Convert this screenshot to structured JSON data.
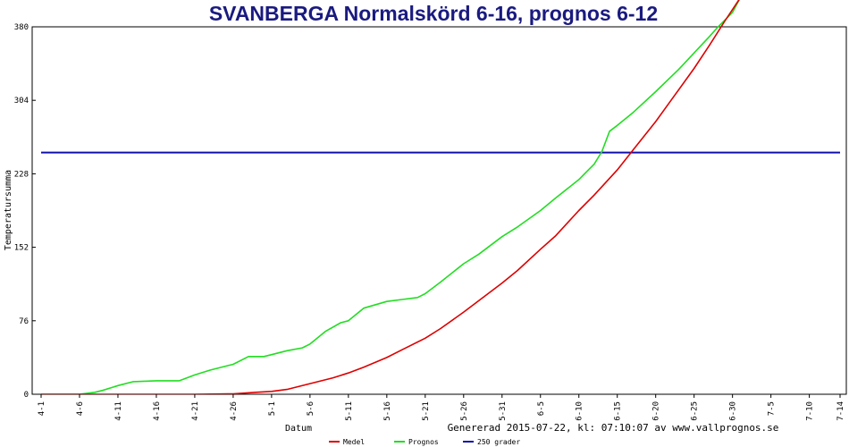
{
  "chart_data": {
    "type": "line",
    "title": "SVANBERGA Normalskörd 6-16, prognos 6-12",
    "xlabel": "Datum",
    "ylabel": "Temperatursumma",
    "ylim": [
      0,
      380
    ],
    "yticks": [
      "0",
      "76",
      "152",
      "228",
      "304",
      "380"
    ],
    "x_range_days": [
      0,
      104
    ],
    "xticks": [
      "4-1",
      "4-6",
      "4-11",
      "4-16",
      "4-21",
      "4-26",
      "5-1",
      "5-6",
      "5-11",
      "5-16",
      "5-21",
      "5-26",
      "5-31",
      "6-5",
      "6-10",
      "6-15",
      "6-20",
      "6-25",
      "6-30",
      "7-5",
      "7-10",
      "7-14"
    ],
    "grid": false,
    "legend_position": "bottom",
    "footer": "Genererad 2015-07-22, kl: 07:10:07 av www.vallprognos.se",
    "series": [
      {
        "name": "Medel",
        "color": "#dd0000",
        "points": [
          [
            "4-1",
            0
          ],
          [
            "4-6",
            0
          ],
          [
            "4-11",
            0
          ],
          [
            "4-16",
            0
          ],
          [
            "4-21",
            0
          ],
          [
            "4-26",
            0.5
          ],
          [
            "4-29",
            2
          ],
          [
            "5-1",
            3
          ],
          [
            "5-3",
            5
          ],
          [
            "5-6",
            11
          ],
          [
            "5-9",
            17
          ],
          [
            "5-11",
            22
          ],
          [
            "5-13",
            28
          ],
          [
            "5-16",
            38
          ],
          [
            "5-18",
            46
          ],
          [
            "5-21",
            58
          ],
          [
            "5-23",
            68
          ],
          [
            "5-26",
            85
          ],
          [
            "5-28",
            97
          ],
          [
            "5-31",
            115
          ],
          [
            "6-2",
            128
          ],
          [
            "6-5",
            150
          ],
          [
            "6-7",
            164
          ],
          [
            "6-10",
            190
          ],
          [
            "6-12",
            206
          ],
          [
            "6-15",
            232
          ],
          [
            "6-17",
            252
          ],
          [
            "6-20",
            282
          ],
          [
            "6-22",
            304
          ],
          [
            "6-25",
            337
          ],
          [
            "6-27",
            361
          ],
          [
            "6-29",
            386
          ],
          [
            "7-1",
            410
          ]
        ]
      },
      {
        "name": "Prognos",
        "color": "#22dd22",
        "points": [
          [
            "4-1",
            0
          ],
          [
            "4-6",
            0
          ],
          [
            "4-8",
            2
          ],
          [
            "4-9",
            4
          ],
          [
            "4-11",
            9
          ],
          [
            "4-13",
            13
          ],
          [
            "4-16",
            14
          ],
          [
            "4-19",
            14
          ],
          [
            "4-21",
            20
          ],
          [
            "4-23",
            25
          ],
          [
            "4-25",
            29
          ],
          [
            "4-26",
            31
          ],
          [
            "4-28",
            39
          ],
          [
            "4-30",
            39
          ],
          [
            "5-1",
            41
          ],
          [
            "5-3",
            45
          ],
          [
            "5-5",
            48
          ],
          [
            "5-6",
            52
          ],
          [
            "5-8",
            65
          ],
          [
            "5-10",
            74
          ],
          [
            "5-11",
            76
          ],
          [
            "5-13",
            89
          ],
          [
            "5-16",
            96
          ],
          [
            "5-18",
            98
          ],
          [
            "5-20",
            100
          ],
          [
            "5-21",
            104
          ],
          [
            "5-23",
            116
          ],
          [
            "5-26",
            135
          ],
          [
            "5-28",
            145
          ],
          [
            "5-31",
            163
          ],
          [
            "6-2",
            173
          ],
          [
            "6-5",
            190
          ],
          [
            "6-7",
            203
          ],
          [
            "6-10",
            222
          ],
          [
            "6-11",
            230
          ],
          [
            "6-12",
            238
          ],
          [
            "6-13",
            251
          ],
          [
            "6-14",
            272
          ],
          [
            "6-15",
            278
          ],
          [
            "6-17",
            291
          ],
          [
            "6-20",
            313
          ],
          [
            "6-23",
            336
          ],
          [
            "6-25",
            353
          ],
          [
            "6-27",
            370
          ],
          [
            "6-28",
            379
          ],
          [
            "6-30",
            395
          ],
          [
            "7-1",
            410
          ]
        ]
      },
      {
        "name": "250 grader",
        "color": "#1010aa",
        "points": [
          [
            "4-1",
            250
          ],
          [
            "7-14",
            250
          ]
        ]
      }
    ]
  }
}
